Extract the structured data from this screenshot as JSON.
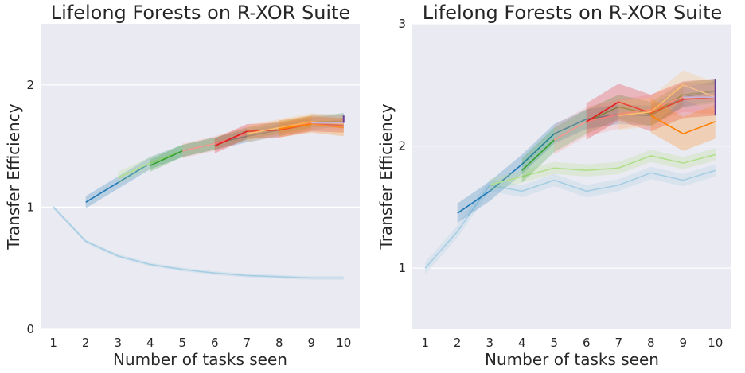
{
  "chart_data": [
    {
      "type": "line",
      "title": "Lifelong Forests on R-XOR Suite",
      "xlabel": "Number of tasks seen",
      "ylabel": "Transfer Efficiency",
      "xlim": [
        0.6,
        10.5
      ],
      "ylim": [
        0,
        2.5
      ],
      "xticks": [
        "1",
        "2",
        "3",
        "4",
        "5",
        "6",
        "7",
        "8",
        "9",
        "10"
      ],
      "yticks": [
        "0",
        "1",
        "2"
      ],
      "ytick_values": [
        0,
        1,
        2
      ],
      "grid": true,
      "background": "#eaeaf2",
      "series": [
        {
          "color": "#a6cee3",
          "band": 0.015,
          "points": [
            [
              1,
              1.0
            ],
            [
              2,
              0.72
            ],
            [
              3,
              0.6
            ],
            [
              4,
              0.53
            ],
            [
              5,
              0.49
            ],
            [
              6,
              0.46
            ],
            [
              7,
              0.44
            ],
            [
              8,
              0.43
            ],
            [
              9,
              0.42
            ],
            [
              10,
              0.42
            ]
          ]
        },
        {
          "color": "#1f78b4",
          "band": 0.05,
          "points": [
            [
              2,
              1.04
            ],
            [
              3,
              1.2
            ],
            [
              4,
              1.36
            ],
            [
              5,
              1.46
            ],
            [
              6,
              1.52
            ],
            [
              7,
              1.58
            ],
            [
              8,
              1.63
            ],
            [
              9,
              1.68
            ],
            [
              10,
              1.72
            ]
          ]
        },
        {
          "color": "#b2df8a",
          "band": 0.05,
          "points": [
            [
              3,
              1.24
            ],
            [
              4,
              1.36
            ],
            [
              5,
              1.46
            ],
            [
              6,
              1.52
            ],
            [
              7,
              1.6
            ],
            [
              8,
              1.65
            ],
            [
              9,
              1.7
            ],
            [
              10,
              1.72
            ]
          ]
        },
        {
          "color": "#33a02c",
          "band": 0.05,
          "points": [
            [
              4,
              1.34
            ],
            [
              5,
              1.46
            ],
            [
              6,
              1.52
            ],
            [
              7,
              1.6
            ],
            [
              8,
              1.65
            ],
            [
              9,
              1.7
            ],
            [
              10,
              1.7
            ]
          ]
        },
        {
          "color": "#fb9a99",
          "band": 0.06,
          "points": [
            [
              5,
              1.46
            ],
            [
              6,
              1.52
            ],
            [
              7,
              1.6
            ],
            [
              8,
              1.65
            ],
            [
              9,
              1.69
            ],
            [
              10,
              1.69
            ]
          ]
        },
        {
          "color": "#e31a1c",
          "band": 0.06,
          "points": [
            [
              6,
              1.5
            ],
            [
              7,
              1.62
            ],
            [
              8,
              1.63
            ],
            [
              9,
              1.68
            ],
            [
              10,
              1.67
            ]
          ]
        },
        {
          "color": "#fdbf6f",
          "band": 0.07,
          "points": [
            [
              7,
              1.6
            ],
            [
              8,
              1.65
            ],
            [
              9,
              1.7
            ],
            [
              10,
              1.68
            ]
          ]
        },
        {
          "color": "#ff7f00",
          "band": 0.07,
          "points": [
            [
              8,
              1.64
            ],
            [
              9,
              1.68
            ],
            [
              10,
              1.65
            ]
          ]
        },
        {
          "color": "#cab2d6",
          "band": 0.07,
          "points": [
            [
              9,
              1.69
            ],
            [
              10,
              1.69
            ]
          ]
        },
        {
          "color": "#6a3d9a",
          "band": 0.03,
          "points": [
            [
              10,
              1.72
            ]
          ]
        }
      ]
    },
    {
      "type": "line",
      "title": "Lifelong Forests on R-XOR Suite",
      "xlabel": "Number of tasks seen",
      "ylabel": "Transfer Efficiency",
      "xlim": [
        0.6,
        10.5
      ],
      "ylim": [
        0.5,
        3.0
      ],
      "xticks": [
        "1",
        "2",
        "3",
        "4",
        "5",
        "6",
        "7",
        "8",
        "9",
        "10"
      ],
      "yticks": [
        "1",
        "2",
        "3"
      ],
      "ytick_values": [
        1,
        2,
        3
      ],
      "grid": true,
      "background": "#eaeaf2",
      "series": [
        {
          "color": "#a6cee3",
          "band": 0.05,
          "points": [
            [
              1,
              1.0
            ],
            [
              2,
              1.3
            ],
            [
              3,
              1.68
            ],
            [
              4,
              1.63
            ],
            [
              5,
              1.72
            ],
            [
              6,
              1.63
            ],
            [
              7,
              1.68
            ],
            [
              8,
              1.78
            ],
            [
              9,
              1.72
            ],
            [
              10,
              1.8
            ]
          ]
        },
        {
          "color": "#1f78b4",
          "band": 0.08,
          "points": [
            [
              2,
              1.45
            ],
            [
              3,
              1.63
            ],
            [
              4,
              1.85
            ],
            [
              5,
              2.1
            ],
            [
              6,
              2.22
            ],
            [
              7,
              2.26
            ],
            [
              8,
              2.25
            ],
            [
              9,
              2.4
            ],
            [
              10,
              2.45
            ]
          ]
        },
        {
          "color": "#b2df8a",
          "band": 0.05,
          "points": [
            [
              3,
              1.68
            ],
            [
              4,
              1.75
            ],
            [
              5,
              1.82
            ],
            [
              6,
              1.8
            ],
            [
              7,
              1.82
            ],
            [
              8,
              1.92
            ],
            [
              9,
              1.86
            ],
            [
              10,
              1.93
            ]
          ]
        },
        {
          "color": "#33a02c",
          "band": 0.1,
          "points": [
            [
              4,
              1.8
            ],
            [
              5,
              2.05
            ],
            [
              6,
              2.2
            ],
            [
              7,
              2.32
            ],
            [
              8,
              2.26
            ],
            [
              9,
              2.42
            ],
            [
              10,
              2.45
            ]
          ]
        },
        {
          "color": "#fb9a99",
          "band": 0.12,
          "points": [
            [
              5,
              2.05
            ],
            [
              6,
              2.2
            ],
            [
              7,
              2.26
            ],
            [
              8,
              2.3
            ],
            [
              9,
              2.4
            ],
            [
              10,
              2.38
            ]
          ]
        },
        {
          "color": "#e31a1c",
          "band": 0.15,
          "points": [
            [
              6,
              2.2
            ],
            [
              7,
              2.36
            ],
            [
              8,
              2.27
            ],
            [
              9,
              2.38
            ],
            [
              10,
              2.4
            ]
          ]
        },
        {
          "color": "#fdbf6f",
          "band": 0.12,
          "points": [
            [
              7,
              2.25
            ],
            [
              8,
              2.28
            ],
            [
              9,
              2.5
            ],
            [
              10,
              2.4
            ]
          ]
        },
        {
          "color": "#ff7f00",
          "band": 0.14,
          "points": [
            [
              8,
              2.25
            ],
            [
              9,
              2.1
            ],
            [
              10,
              2.2
            ]
          ]
        },
        {
          "color": "#cab2d6",
          "band": 0.1,
          "points": [
            [
              9,
              2.4
            ],
            [
              10,
              2.4
            ]
          ]
        },
        {
          "color": "#6a3d9a",
          "band": 0.15,
          "points": [
            [
              10,
              2.4
            ]
          ]
        }
      ]
    }
  ]
}
